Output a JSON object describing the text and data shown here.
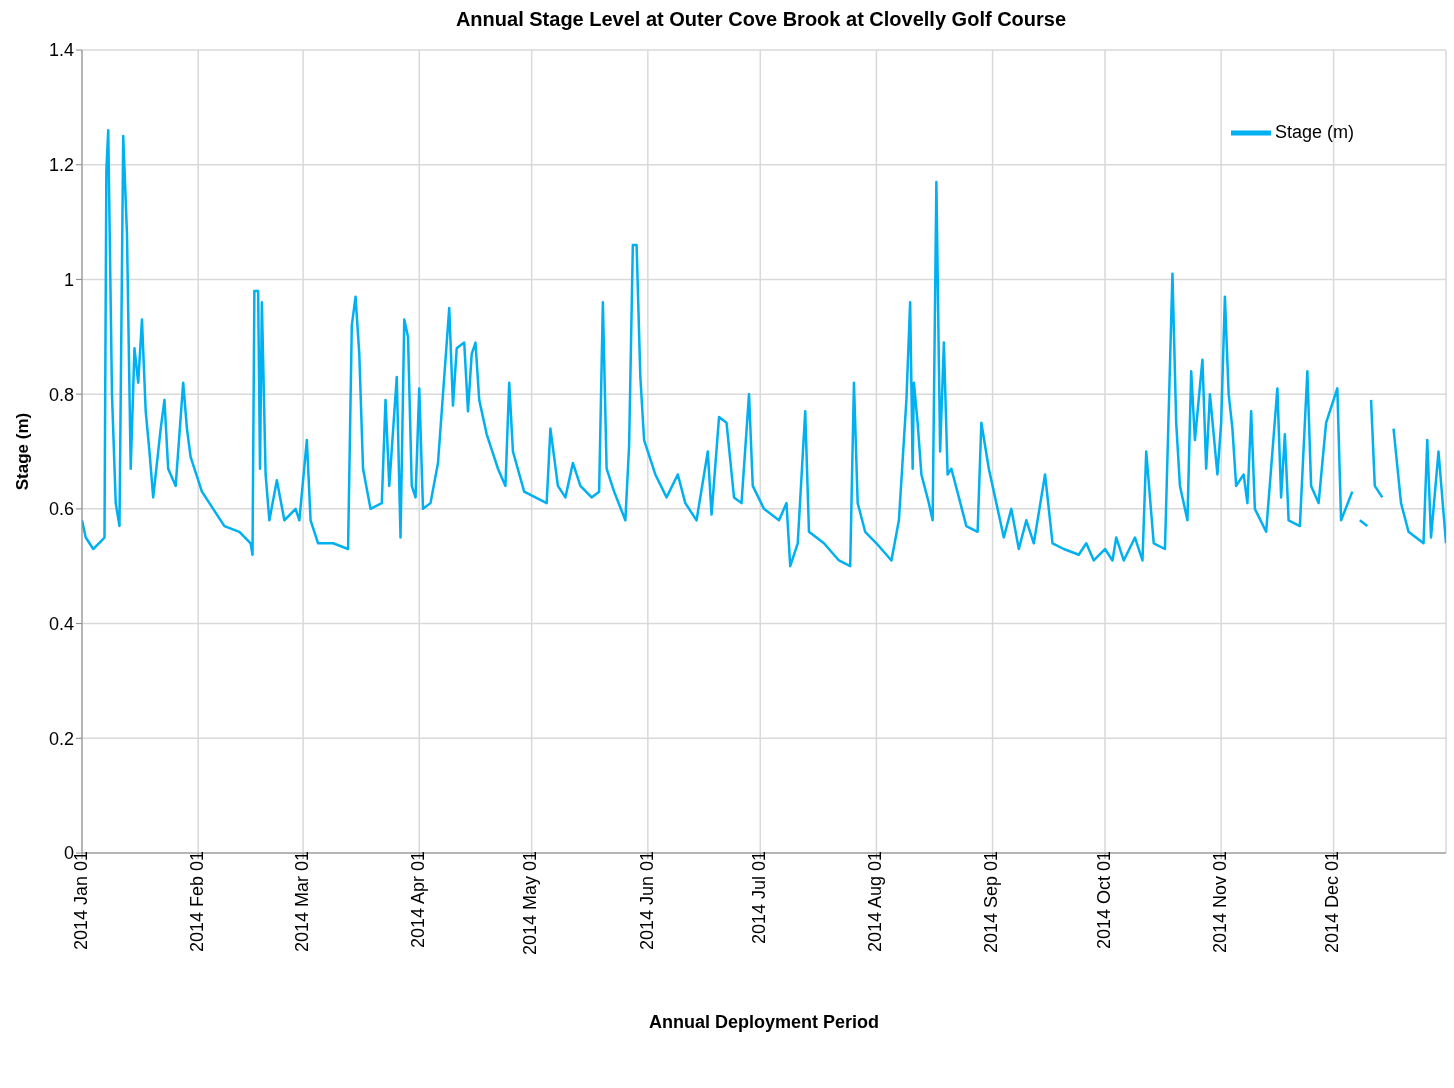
{
  "chart_data": {
    "type": "line",
    "title": "Annual Stage Level at Outer Cove Brook at Clovelly Golf Course",
    "xlabel": "Annual Deployment Period",
    "ylabel": "Stage (m)",
    "x": [
      "2014-01-01",
      "2014-01-02",
      "2014-01-04",
      "2014-01-07",
      "2014-01-07T12:00",
      "2014-01-08",
      "2014-01-09",
      "2014-01-10",
      "2014-01-11",
      "2014-01-12",
      "2014-01-13",
      "2014-01-14",
      "2014-01-15",
      "2014-01-16",
      "2014-01-17",
      "2014-01-18",
      "2014-01-19",
      "2014-01-20",
      "2014-01-22",
      "2014-01-23",
      "2014-01-24",
      "2014-01-26",
      "2014-01-28",
      "2014-01-29",
      "2014-01-30",
      "2014-02-02",
      "2014-02-05",
      "2014-02-08",
      "2014-02-12",
      "2014-02-15",
      "2014-02-15T12:00",
      "2014-02-16",
      "2014-02-17",
      "2014-02-17T12:00",
      "2014-02-18",
      "2014-02-19",
      "2014-02-20",
      "2014-02-22",
      "2014-02-24",
      "2014-02-27",
      "2014-02-28",
      "2014-03-02",
      "2014-03-03",
      "2014-03-05",
      "2014-03-09",
      "2014-03-13",
      "2014-03-14",
      "2014-03-15",
      "2014-03-16",
      "2014-03-17",
      "2014-03-19",
      "2014-03-22",
      "2014-03-23",
      "2014-03-24",
      "2014-03-26",
      "2014-03-27",
      "2014-03-28",
      "2014-03-29",
      "2014-03-30",
      "2014-03-31",
      "2014-04-01",
      "2014-04-02",
      "2014-04-04",
      "2014-04-06",
      "2014-04-09",
      "2014-04-10",
      "2014-04-11",
      "2014-04-13",
      "2014-04-14",
      "2014-04-15",
      "2014-04-16",
      "2014-04-17",
      "2014-04-19",
      "2014-04-22",
      "2014-04-24",
      "2014-04-25",
      "2014-04-26",
      "2014-04-29",
      "2014-05-02",
      "2014-05-05",
      "2014-05-06",
      "2014-05-08",
      "2014-05-10",
      "2014-05-12",
      "2014-05-14",
      "2014-05-17",
      "2014-05-19",
      "2014-05-20",
      "2014-05-21",
      "2014-05-23",
      "2014-05-26",
      "2014-05-27",
      "2014-05-28",
      "2014-05-29",
      "2014-05-30",
      "2014-05-31",
      "2014-06-03",
      "2014-06-06",
      "2014-06-09",
      "2014-06-11",
      "2014-06-14",
      "2014-06-17",
      "2014-06-18",
      "2014-06-20",
      "2014-06-22",
      "2014-06-24",
      "2014-06-26",
      "2014-06-28",
      "2014-06-29",
      "2014-07-02",
      "2014-07-06",
      "2014-07-08",
      "2014-07-09",
      "2014-07-11",
      "2014-07-13",
      "2014-07-14",
      "2014-07-18",
      "2014-07-22",
      "2014-07-25",
      "2014-07-26",
      "2014-07-27",
      "2014-07-29",
      "2014-08-01",
      "2014-08-05",
      "2014-08-07",
      "2014-08-09",
      "2014-08-10",
      "2014-08-10T16:00",
      "2014-08-11",
      "2014-08-12",
      "2014-08-13",
      "2014-08-15",
      "2014-08-16",
      "2014-08-17",
      "2014-08-18",
      "2014-08-19",
      "2014-08-20",
      "2014-08-21",
      "2014-08-23",
      "2014-08-25",
      "2014-08-28",
      "2014-08-29",
      "2014-08-31",
      "2014-09-02",
      "2014-09-04",
      "2014-09-06",
      "2014-09-08",
      "2014-09-10",
      "2014-09-12",
      "2014-09-15",
      "2014-09-17",
      "2014-09-20",
      "2014-09-24",
      "2014-09-26",
      "2014-09-28",
      "2014-10-01",
      "2014-10-03",
      "2014-10-04",
      "2014-10-06",
      "2014-10-09",
      "2014-10-11",
      "2014-10-12",
      "2014-10-14",
      "2014-10-17",
      "2014-10-19",
      "2014-10-20",
      "2014-10-21",
      "2014-10-23",
      "2014-10-24",
      "2014-10-25",
      "2014-10-27",
      "2014-10-28",
      "2014-10-29",
      "2014-10-31",
      "2014-11-01",
      "2014-11-02",
      "2014-11-03",
      "2014-11-04",
      "2014-11-05",
      "2014-11-07",
      "2014-11-08",
      "2014-11-09",
      "2014-11-10",
      "2014-11-13",
      "2014-11-16",
      "2014-11-17",
      "2014-11-18",
      "2014-11-19",
      "2014-11-22",
      "2014-11-24",
      "2014-11-25",
      "2014-11-27",
      "2014-11-29",
      "2014-12-02",
      "2014-12-03",
      "2014-12-06",
      "2014-12-07",
      "2014-12-08",
      "2014-12-10",
      "2014-12-10T12:00",
      "2014-12-11",
      "2014-12-12",
      "2014-12-14",
      "2014-12-15",
      "2014-12-17",
      "2014-12-19",
      "2014-12-21",
      "2014-12-25",
      "2014-12-26",
      "2014-12-27",
      "2014-12-29",
      "2014-12-31"
    ],
    "series": [
      {
        "name": "Stage (m)",
        "color": "#00b0f0",
        "values": [
          0.58,
          0.55,
          0.53,
          0.55,
          1.19,
          1.26,
          0.8,
          0.61,
          0.57,
          1.25,
          1.08,
          0.67,
          0.88,
          0.82,
          0.93,
          0.77,
          0.7,
          0.62,
          0.74,
          0.79,
          0.67,
          0.64,
          0.82,
          0.74,
          0.69,
          0.63,
          0.6,
          0.57,
          0.56,
          0.54,
          0.52,
          0.98,
          0.98,
          0.67,
          0.96,
          0.66,
          0.58,
          0.65,
          0.58,
          0.6,
          0.58,
          0.72,
          0.58,
          0.54,
          0.54,
          0.53,
          0.92,
          0.97,
          0.87,
          0.67,
          0.6,
          0.61,
          0.79,
          0.64,
          0.83,
          0.55,
          0.93,
          0.9,
          0.64,
          0.62,
          0.81,
          0.6,
          0.61,
          0.68,
          0.95,
          0.78,
          0.88,
          0.89,
          0.77,
          0.87,
          0.89,
          0.79,
          0.73,
          0.67,
          0.64,
          0.82,
          0.7,
          0.63,
          0.62,
          0.61,
          0.74,
          0.64,
          0.62,
          0.68,
          0.64,
          0.62,
          0.63,
          0.96,
          0.67,
          0.63,
          0.58,
          0.71,
          1.06,
          1.06,
          0.83,
          0.72,
          0.66,
          0.62,
          0.66,
          0.61,
          0.58,
          0.7,
          0.59,
          0.76,
          0.75,
          0.62,
          0.61,
          0.8,
          0.64,
          0.6,
          0.58,
          0.61,
          0.5,
          0.54,
          0.77,
          0.56,
          0.54,
          0.51,
          0.5,
          0.82,
          0.61,
          0.56,
          0.54,
          0.51,
          0.58,
          0.79,
          0.96,
          0.67,
          0.82,
          0.75,
          0.66,
          0.61,
          0.58,
          1.17,
          0.7,
          0.89,
          0.66,
          0.67,
          0.62,
          0.57,
          0.56,
          0.75,
          0.67,
          0.61,
          0.55,
          0.6,
          0.53,
          0.58,
          0.54,
          0.66,
          0.54,
          0.53,
          0.52,
          0.54,
          0.51,
          0.53,
          0.51,
          0.55,
          0.51,
          0.55,
          0.51,
          0.7,
          0.54,
          0.53,
          1.01,
          0.75,
          0.64,
          0.58,
          0.84,
          0.72,
          0.86,
          0.67,
          0.8,
          0.66,
          0.75,
          0.97,
          0.8,
          0.74,
          0.64,
          0.66,
          0.61,
          0.77,
          0.6,
          0.56,
          0.81,
          0.62,
          0.73,
          0.58,
          0.57,
          0.84,
          0.64,
          0.61,
          0.75,
          0.81,
          0.58,
          0.63,
          null,
          0.58,
          0.57,
          null,
          0.79,
          0.64,
          0.62,
          null,
          0.74,
          0.61,
          0.56,
          0.54,
          0.72,
          0.55,
          0.7,
          0.54
        ]
      }
    ],
    "xlim": [
      "2014-01-01",
      "2014-12-31"
    ],
    "xticks": [
      {
        "value": "2014-01-01",
        "label": "2014 Jan 01"
      },
      {
        "value": "2014-02-01",
        "label": "2014 Feb 01"
      },
      {
        "value": "2014-03-01",
        "label": "2014 Mar 01"
      },
      {
        "value": "2014-04-01",
        "label": "2014 Apr 01"
      },
      {
        "value": "2014-05-01",
        "label": "2014 May 01"
      },
      {
        "value": "2014-06-01",
        "label": "2014 Jun 01"
      },
      {
        "value": "2014-07-01",
        "label": "2014 Jul 01"
      },
      {
        "value": "2014-08-01",
        "label": "2014 Aug 01"
      },
      {
        "value": "2014-09-01",
        "label": "2014 Sep 01"
      },
      {
        "value": "2014-10-01",
        "label": "2014 Oct 01"
      },
      {
        "value": "2014-11-01",
        "label": "2014 Nov 01"
      },
      {
        "value": "2014-12-01",
        "label": "2014 Dec 01"
      }
    ],
    "ylim": [
      0,
      1.4
    ],
    "yticks": [
      0,
      0.2,
      0.4,
      0.6,
      0.8,
      1,
      1.2,
      1.4
    ],
    "grid": true,
    "legend": "top right"
  }
}
